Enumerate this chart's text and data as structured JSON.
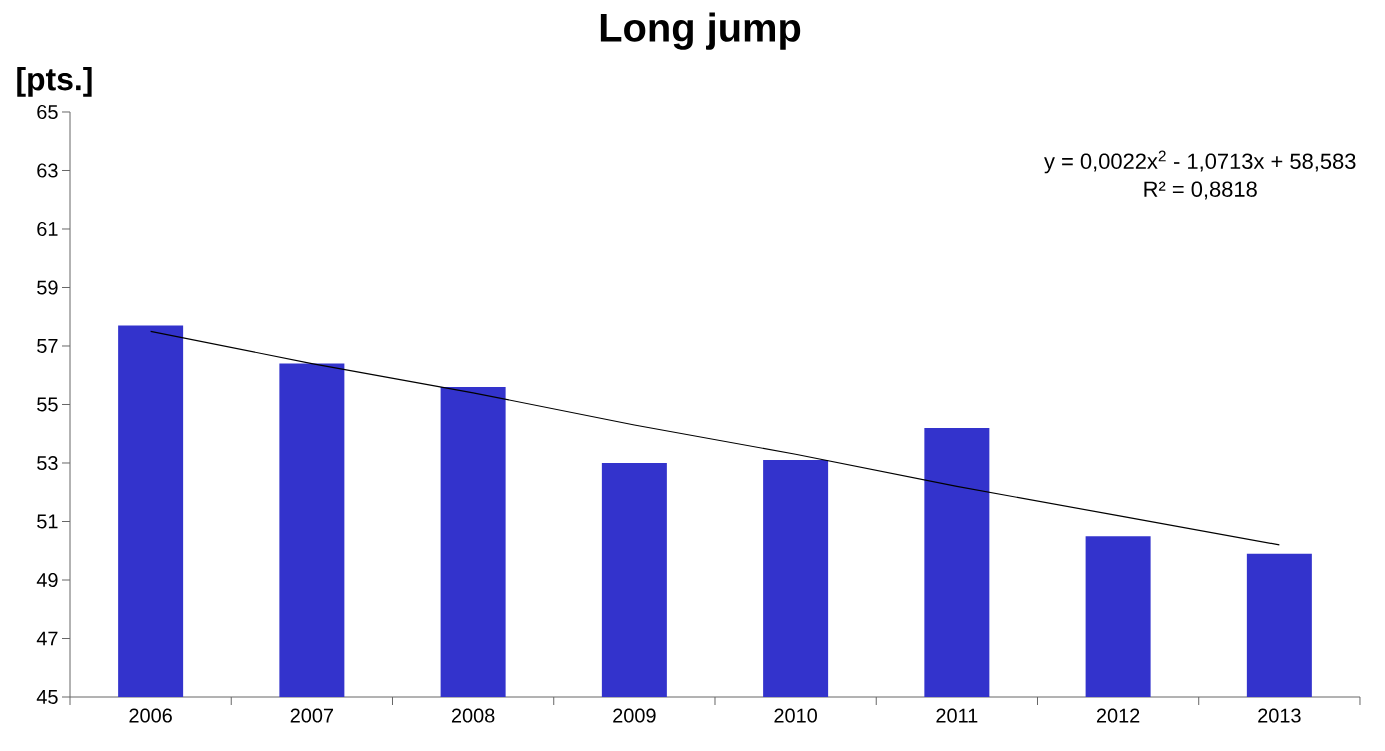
{
  "chart_data": {
    "type": "bar",
    "title": "Long jump",
    "ylabel": "[pts.]",
    "categories": [
      "2006",
      "2007",
      "2008",
      "2009",
      "2010",
      "2011",
      "2012",
      "2013"
    ],
    "series": [
      {
        "color": "#3333cc",
        "values": [
          57.7,
          56.4,
          55.6,
          53.0,
          53.1,
          54.2,
          50.5,
          49.9
        ]
      },
      {
        "type": "line",
        "color": "#000000",
        "values": [
          57.5,
          56.4,
          55.4,
          54.3,
          53.3,
          52.2,
          51.2,
          50.2
        ]
      }
    ],
    "ylim": [
      45,
      65
    ],
    "yticks": [
      45,
      47,
      49,
      51,
      53,
      55,
      57,
      59,
      61,
      63,
      65
    ],
    "annotations": [
      "y = 0,0022x$^{2}$ - 1,0713x + 58,583",
      "R² = 0,8818"
    ]
  }
}
